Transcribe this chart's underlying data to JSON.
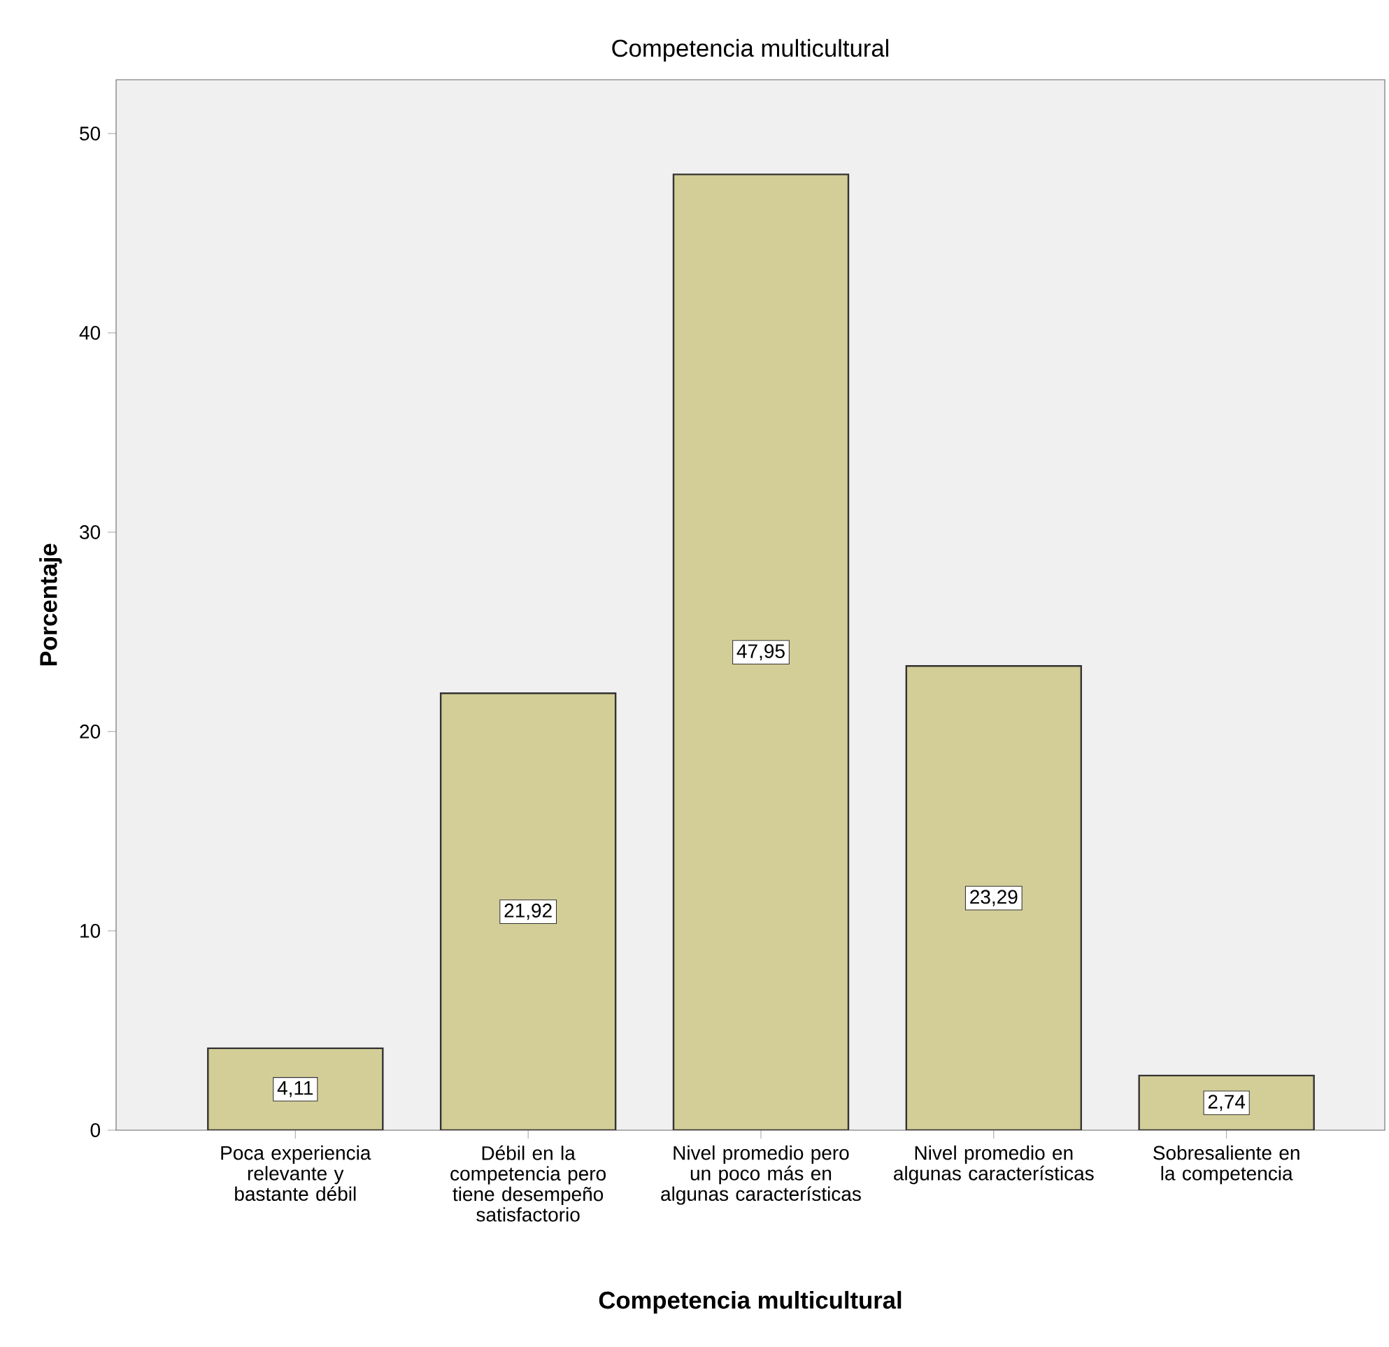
{
  "chart_data": {
    "type": "bar",
    "title": "Competencia multicultural",
    "xlabel": "Competencia multicultural",
    "ylabel": "Porcentaje",
    "categories": [
      "Poca experiencia relevante y bastante débil",
      "Débil en la competencia pero tiene desempeño satisfactorio",
      "Nivel promedio pero un poco más en algunas características",
      "Nivel promedio en algunas características",
      "Sobresaliente en la competencia"
    ],
    "values": [
      4.11,
      21.92,
      47.95,
      23.29,
      2.74
    ],
    "value_labels": [
      "4,11",
      "21,92",
      "47,95",
      "23,29",
      "2,74"
    ],
    "color": "#d3ce97",
    "ylim": [
      0,
      52.7
    ],
    "yticks": [
      0,
      10,
      20,
      30,
      40,
      50
    ],
    "grid": false
  }
}
